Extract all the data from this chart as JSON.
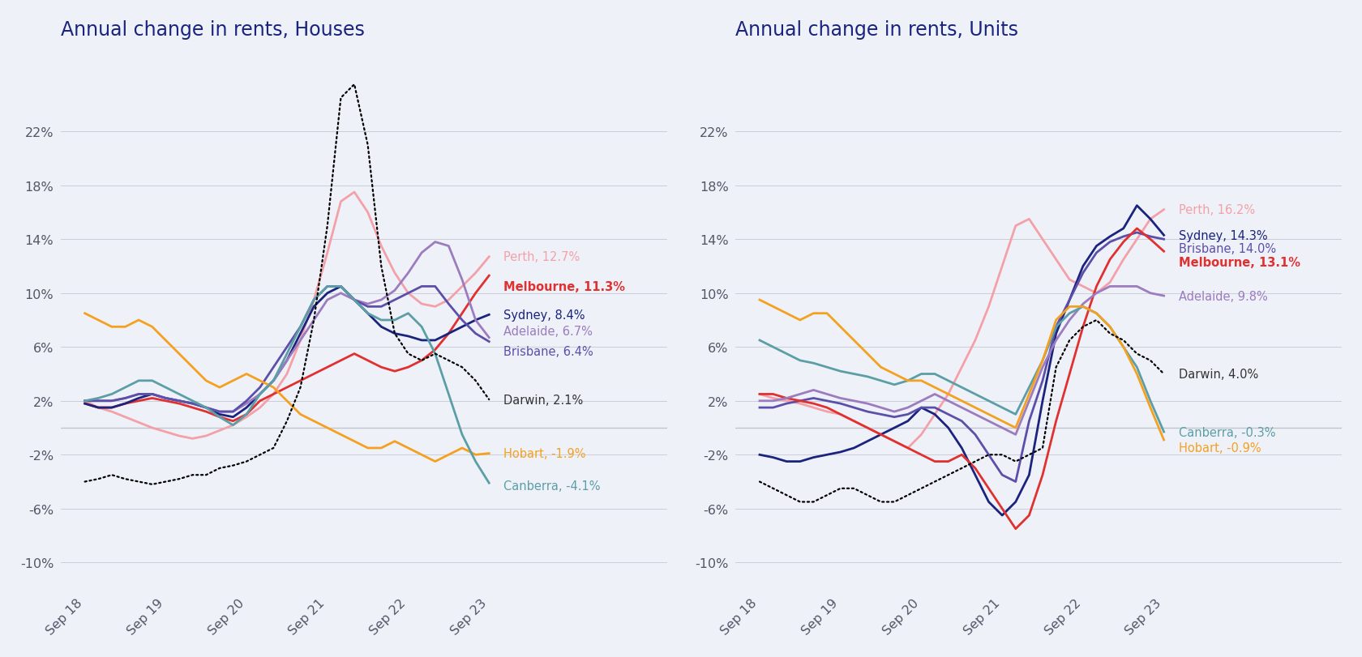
{
  "title_houses": "Annual change in rents, Houses",
  "title_units": "Annual change in rents, Units",
  "background_color": "#eef2f8",
  "title_color": "#1a237e",
  "xtick_labels": [
    "Sep 18",
    "Sep 19",
    "Sep 20",
    "Sep 21",
    "Sep 22",
    "Sep 23"
  ],
  "colors_houses": {
    "Perth": "#f4a0a8",
    "Melbourne": "#e03030",
    "Sydney": "#1a237e",
    "Adelaide": "#9c7bbf",
    "Brisbane": "#5c4faa",
    "Darwin": "#111111",
    "Hobart": "#f5a020",
    "Canberra": "#5b9ea6"
  },
  "colors_units": {
    "Perth": "#f4a0a8",
    "Sydney": "#1a237e",
    "Brisbane": "#5c4faa",
    "Melbourne": "#e03030",
    "Adelaide": "#9c7bbf",
    "Darwin": "#111111",
    "Canberra": "#5b9ea6",
    "Hobart": "#f5a020"
  },
  "labels_houses": {
    "Perth": "Perth, 12.7%",
    "Melbourne": "Melbourne, 11.3%",
    "Sydney": "Sydney, 8.4%",
    "Adelaide": "Adelaide, 6.7%",
    "Brisbane": "Brisbane, 6.4%",
    "Darwin": "Darwin, 2.1%",
    "Hobart": "Hobart, -1.9%",
    "Canberra": "Canberra, -4.1%"
  },
  "labels_units": {
    "Perth": "Perth, 16.2%",
    "Sydney": "Sydney, 14.3%",
    "Brisbane": "Brisbane, 14.0%",
    "Melbourne": "Melbourne, 13.1%",
    "Adelaide": "Adelaide, 9.8%",
    "Darwin": "Darwin, 4.0%",
    "Canberra": "Canberra, -0.3%",
    "Hobart": "Hobart, -0.9%"
  },
  "label_y_houses": {
    "Perth": 12.7,
    "Melbourne": 10.5,
    "Sydney": 8.4,
    "Adelaide": 7.2,
    "Brisbane": 5.7,
    "Darwin": 2.1,
    "Hobart": -1.9,
    "Canberra": -4.3
  },
  "label_y_units": {
    "Perth": 16.2,
    "Sydney": 14.3,
    "Brisbane": 13.3,
    "Melbourne": 12.3,
    "Adelaide": 9.8,
    "Darwin": 4.0,
    "Canberra": -0.3,
    "Hobart": -1.5
  },
  "houses": {
    "Perth": [
      2.0,
      1.5,
      1.2,
      0.8,
      0.4,
      0.0,
      -0.3,
      -0.6,
      -0.8,
      -0.6,
      -0.2,
      0.2,
      0.8,
      1.5,
      2.5,
      4.0,
      6.5,
      9.5,
      13.0,
      16.8,
      17.5,
      16.0,
      13.5,
      11.5,
      10.0,
      9.2,
      9.0,
      9.5,
      10.5,
      11.5,
      12.7
    ],
    "Melbourne": [
      1.8,
      1.5,
      1.5,
      1.8,
      2.0,
      2.2,
      2.0,
      1.8,
      1.5,
      1.2,
      0.8,
      0.5,
      1.0,
      2.0,
      2.5,
      3.0,
      3.5,
      4.0,
      4.5,
      5.0,
      5.5,
      5.0,
      4.5,
      4.2,
      4.5,
      5.0,
      5.8,
      7.0,
      8.5,
      10.0,
      11.3
    ],
    "Sydney": [
      1.8,
      1.5,
      1.5,
      1.8,
      2.2,
      2.5,
      2.2,
      2.0,
      1.8,
      1.5,
      1.0,
      0.8,
      1.5,
      2.5,
      3.5,
      5.0,
      7.0,
      9.0,
      10.0,
      10.5,
      9.5,
      8.5,
      7.5,
      7.0,
      6.8,
      6.5,
      6.5,
      7.0,
      7.5,
      8.0,
      8.4
    ],
    "Adelaide": [
      2.0,
      2.0,
      2.0,
      2.2,
      2.5,
      2.5,
      2.2,
      2.0,
      1.8,
      1.5,
      1.2,
      1.2,
      1.8,
      2.5,
      3.5,
      5.0,
      6.5,
      8.0,
      9.5,
      10.0,
      9.5,
      9.2,
      9.5,
      10.2,
      11.5,
      13.0,
      13.8,
      13.5,
      11.0,
      8.0,
      6.7
    ],
    "Brisbane": [
      2.0,
      2.0,
      2.0,
      2.2,
      2.5,
      2.5,
      2.2,
      2.0,
      1.8,
      1.5,
      1.2,
      1.2,
      2.0,
      3.0,
      4.5,
      6.0,
      7.5,
      9.5,
      10.5,
      10.5,
      9.5,
      9.0,
      9.0,
      9.5,
      10.0,
      10.5,
      10.5,
      9.2,
      8.0,
      7.0,
      6.4
    ],
    "Darwin": [
      -4.0,
      -3.8,
      -3.5,
      -3.8,
      -4.0,
      -4.2,
      -4.0,
      -3.8,
      -3.5,
      -3.5,
      -3.0,
      -2.8,
      -2.5,
      -2.0,
      -1.5,
      0.5,
      3.0,
      8.0,
      15.0,
      24.5,
      25.5,
      21.0,
      12.0,
      7.0,
      5.5,
      5.0,
      5.5,
      5.0,
      4.5,
      3.5,
      2.1
    ],
    "Hobart": [
      8.5,
      8.0,
      7.5,
      7.5,
      8.0,
      7.5,
      6.5,
      5.5,
      4.5,
      3.5,
      3.0,
      3.5,
      4.0,
      3.5,
      3.0,
      2.0,
      1.0,
      0.5,
      0.0,
      -0.5,
      -1.0,
      -1.5,
      -1.5,
      -1.0,
      -1.5,
      -2.0,
      -2.5,
      -2.0,
      -1.5,
      -2.0,
      -1.9
    ],
    "Canberra": [
      2.0,
      2.2,
      2.5,
      3.0,
      3.5,
      3.5,
      3.0,
      2.5,
      2.0,
      1.5,
      0.8,
      0.2,
      1.0,
      2.5,
      3.5,
      5.5,
      7.5,
      9.5,
      10.5,
      10.5,
      9.5,
      8.5,
      8.0,
      8.0,
      8.5,
      7.5,
      5.5,
      2.5,
      -0.5,
      -2.5,
      -4.1
    ]
  },
  "units": {
    "Perth": [
      2.5,
      2.2,
      2.0,
      1.8,
      1.5,
      1.2,
      1.0,
      0.5,
      0.0,
      -0.5,
      -1.0,
      -1.5,
      -0.5,
      1.0,
      2.5,
      4.5,
      6.5,
      9.0,
      12.0,
      15.0,
      15.5,
      14.0,
      12.5,
      11.0,
      10.5,
      10.0,
      10.8,
      12.5,
      14.0,
      15.5,
      16.2
    ],
    "Sydney": [
      -2.0,
      -2.2,
      -2.5,
      -2.5,
      -2.2,
      -2.0,
      -1.8,
      -1.5,
      -1.0,
      -0.5,
      0.0,
      0.5,
      1.5,
      1.0,
      0.0,
      -1.5,
      -3.5,
      -5.5,
      -6.5,
      -5.5,
      -3.5,
      2.0,
      7.0,
      9.5,
      12.0,
      13.5,
      14.2,
      14.8,
      16.5,
      15.5,
      14.3
    ],
    "Brisbane": [
      1.5,
      1.5,
      1.8,
      2.0,
      2.2,
      2.0,
      1.8,
      1.5,
      1.2,
      1.0,
      0.8,
      1.0,
      1.5,
      1.5,
      1.0,
      0.5,
      -0.5,
      -2.0,
      -3.5,
      -4.0,
      0.5,
      3.5,
      7.5,
      9.5,
      11.5,
      13.0,
      13.8,
      14.2,
      14.5,
      14.2,
      14.0
    ],
    "Melbourne": [
      2.5,
      2.5,
      2.2,
      2.0,
      1.8,
      1.5,
      1.0,
      0.5,
      0.0,
      -0.5,
      -1.0,
      -1.5,
      -2.0,
      -2.5,
      -2.5,
      -2.0,
      -3.0,
      -4.5,
      -6.0,
      -7.5,
      -6.5,
      -3.5,
      0.5,
      4.0,
      7.5,
      10.5,
      12.5,
      13.8,
      14.8,
      14.0,
      13.1
    ],
    "Adelaide": [
      2.0,
      2.0,
      2.2,
      2.5,
      2.8,
      2.5,
      2.2,
      2.0,
      1.8,
      1.5,
      1.2,
      1.5,
      2.0,
      2.5,
      2.0,
      1.5,
      1.0,
      0.5,
      0.0,
      -0.5,
      2.0,
      4.5,
      6.5,
      8.0,
      9.2,
      10.0,
      10.5,
      10.5,
      10.5,
      10.0,
      9.8
    ],
    "Darwin": [
      -4.0,
      -4.5,
      -5.0,
      -5.5,
      -5.5,
      -5.0,
      -4.5,
      -4.5,
      -5.0,
      -5.5,
      -5.5,
      -5.0,
      -4.5,
      -4.0,
      -3.5,
      -3.0,
      -2.5,
      -2.0,
      -2.0,
      -2.5,
      -2.0,
      -1.5,
      4.5,
      6.5,
      7.5,
      8.0,
      7.0,
      6.5,
      5.5,
      5.0,
      4.0
    ],
    "Canberra": [
      6.5,
      6.0,
      5.5,
      5.0,
      4.8,
      4.5,
      4.2,
      4.0,
      3.8,
      3.5,
      3.2,
      3.5,
      4.0,
      4.0,
      3.5,
      3.0,
      2.5,
      2.0,
      1.5,
      1.0,
      3.0,
      5.0,
      7.5,
      8.5,
      9.0,
      8.5,
      7.5,
      6.0,
      4.5,
      2.0,
      -0.3
    ],
    "Hobart": [
      9.5,
      9.0,
      8.5,
      8.0,
      8.5,
      8.5,
      7.5,
      6.5,
      5.5,
      4.5,
      4.0,
      3.5,
      3.5,
      3.0,
      2.5,
      2.0,
      1.5,
      1.0,
      0.5,
      0.0,
      2.5,
      5.0,
      8.0,
      9.0,
      9.0,
      8.5,
      7.5,
      6.0,
      4.0,
      1.5,
      -0.9
    ]
  }
}
